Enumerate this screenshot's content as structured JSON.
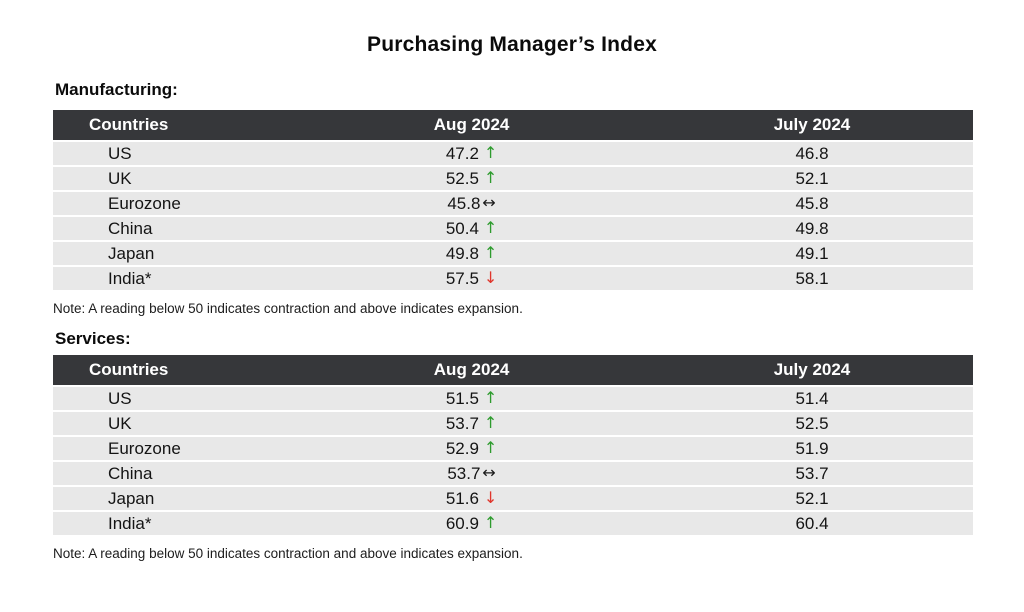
{
  "title": "Purchasing Manager’s Index",
  "manufacturing": {
    "heading": "Manufacturing:",
    "columns": [
      "Countries",
      "Aug 2024",
      "July 2024"
    ],
    "rows": [
      {
        "country": "US",
        "aug": "47.2",
        "arrow": "↑",
        "arrow_class": "arrow up",
        "july": "46.8"
      },
      {
        "country": "UK",
        "aug": "52.5",
        "arrow": "↑",
        "arrow_class": "arrow up",
        "july": "52.1"
      },
      {
        "country": "Eurozone",
        "aug": "45.8",
        "arrow": "↔",
        "arrow_class": "arrow flat",
        "july": "45.8"
      },
      {
        "country": "China",
        "aug": "50.4",
        "arrow": "↑",
        "arrow_class": "arrow up",
        "july": "49.8"
      },
      {
        "country": "Japan",
        "aug": "49.8",
        "arrow": "↑",
        "arrow_class": "arrow up",
        "july": "49.1"
      },
      {
        "country": "India*",
        "aug": "57.5",
        "arrow": "↓",
        "arrow_class": "arrow down",
        "july": "58.1"
      }
    ],
    "note": "Note: A reading below 50 indicates contraction and above indicates expansion."
  },
  "services": {
    "heading": "Services:",
    "columns": [
      "Countries",
      "Aug 2024",
      "July 2024"
    ],
    "rows": [
      {
        "country": "US",
        "aug": "51.5",
        "arrow": "↑",
        "arrow_class": "arrow up",
        "july": "51.4"
      },
      {
        "country": "UK",
        "aug": "53.7",
        "arrow": "↑",
        "arrow_class": "arrow up",
        "july": "52.5"
      },
      {
        "country": "Eurozone",
        "aug": "52.9",
        "arrow": "↑",
        "arrow_class": "arrow up",
        "july": "51.9"
      },
      {
        "country": "China",
        "aug": "53.7",
        "arrow": "↔",
        "arrow_class": "arrow flat",
        "july": "53.7"
      },
      {
        "country": "Japan",
        "aug": "51.6",
        "arrow": "↓",
        "arrow_class": "arrow down",
        "july": "52.1"
      },
      {
        "country": "India*",
        "aug": "60.9",
        "arrow": "↑",
        "arrow_class": "arrow up",
        "july": "60.4"
      }
    ],
    "note": "Note: A reading below 50 indicates contraction and above indicates expansion."
  },
  "colors": {
    "up_arrow": "#2e9b2e",
    "down_arrow": "#e0352b",
    "flat_arrow": "#1a1a1a",
    "header_bg": "#36373a",
    "header_text": "#ffffff",
    "row_bg": "#e8e8e8"
  },
  "chart_data": [
    {
      "type": "table",
      "title": "Manufacturing",
      "columns": [
        "Countries",
        "Aug 2024",
        "July 2024"
      ],
      "rows": [
        {
          "country": "US",
          "aug_2024": 47.2,
          "july_2024": 46.8,
          "trend_vs_july": "up"
        },
        {
          "country": "UK",
          "aug_2024": 52.5,
          "july_2024": 52.1,
          "trend_vs_july": "up"
        },
        {
          "country": "Eurozone",
          "aug_2024": 45.8,
          "july_2024": 45.8,
          "trend_vs_july": "flat"
        },
        {
          "country": "China",
          "aug_2024": 50.4,
          "july_2024": 49.8,
          "trend_vs_july": "up"
        },
        {
          "country": "Japan",
          "aug_2024": 49.8,
          "july_2024": 49.1,
          "trend_vs_july": "up"
        },
        {
          "country": "India*",
          "aug_2024": 57.5,
          "july_2024": 58.1,
          "trend_vs_july": "down"
        }
      ],
      "note": "A reading below 50 indicates contraction and above indicates expansion."
    },
    {
      "type": "table",
      "title": "Services",
      "columns": [
        "Countries",
        "Aug 2024",
        "July 2024"
      ],
      "rows": [
        {
          "country": "US",
          "aug_2024": 51.5,
          "july_2024": 51.4,
          "trend_vs_july": "up"
        },
        {
          "country": "UK",
          "aug_2024": 53.7,
          "july_2024": 52.5,
          "trend_vs_july": "up"
        },
        {
          "country": "Eurozone",
          "aug_2024": 52.9,
          "july_2024": 51.9,
          "trend_vs_july": "up"
        },
        {
          "country": "China",
          "aug_2024": 53.7,
          "july_2024": 53.7,
          "trend_vs_july": "flat"
        },
        {
          "country": "Japan",
          "aug_2024": 51.6,
          "july_2024": 52.1,
          "trend_vs_july": "down"
        },
        {
          "country": "India*",
          "aug_2024": 60.9,
          "july_2024": 60.4,
          "trend_vs_july": "up"
        }
      ],
      "note": "A reading below 50 indicates contraction and above indicates expansion."
    }
  ]
}
